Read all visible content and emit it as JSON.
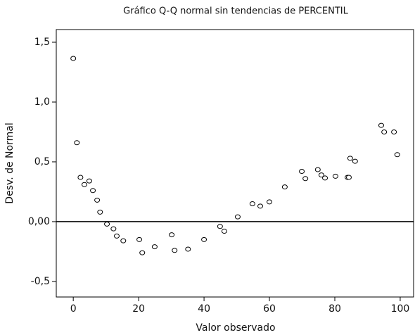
{
  "chart_data": {
    "type": "scatter",
    "title": "Gráfico Q-Q normal sin tendencias de PERCENTIL",
    "x_label": "Valor observado",
    "y_label": "Desv. de Normal",
    "x": [
      0,
      1.1,
      2.2,
      3.4,
      4.9,
      6.0,
      7.3,
      8.2,
      10.3,
      12.3,
      13.3,
      15.3,
      20.2,
      21.1,
      24.9,
      30.1,
      31.0,
      35.1,
      40.0,
      44.9,
      46.2,
      50.3,
      54.8,
      57.2,
      60.0,
      64.7,
      69.9,
      71.0,
      74.8,
      75.9,
      77.0,
      80.2,
      83.9,
      84.3,
      84.7,
      86.2,
      94.2,
      95.1,
      98.1,
      99.1
    ],
    "values": [
      1.365,
      0.66,
      0.37,
      0.31,
      0.34,
      0.26,
      0.18,
      0.08,
      -0.02,
      -0.06,
      -0.12,
      -0.16,
      -0.15,
      -0.26,
      -0.21,
      -0.11,
      -0.24,
      -0.23,
      -0.15,
      -0.04,
      -0.08,
      0.04,
      0.15,
      0.13,
      0.165,
      0.29,
      0.42,
      0.36,
      0.435,
      0.39,
      0.365,
      0.38,
      0.37,
      0.37,
      0.53,
      0.505,
      0.805,
      0.75,
      0.75,
      0.56
    ],
    "xlim": [
      -5.2,
      104.1
    ],
    "ylim": [
      -0.63,
      1.606
    ],
    "xticks": [
      0,
      20,
      40,
      60,
      80,
      100
    ],
    "yticks": [
      {
        "value": 1.5,
        "label": "1,5"
      },
      {
        "value": 1.0,
        "label": "1,0"
      },
      {
        "value": 0.5,
        "label": "0,5"
      },
      {
        "value": 0,
        "label": "0,00"
      },
      {
        "value": -0.5,
        "label": "-0,5"
      }
    ],
    "reference_line": 0,
    "color": "#000000"
  }
}
